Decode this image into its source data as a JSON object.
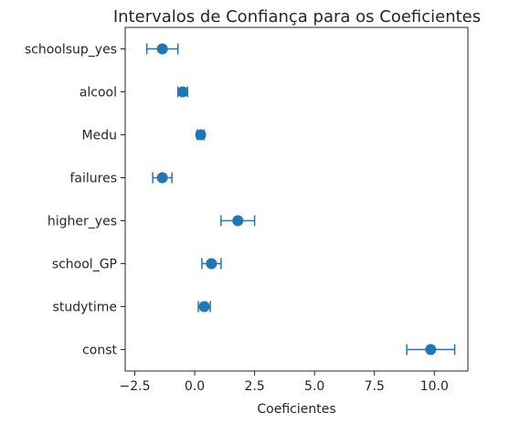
{
  "chart_data": {
    "type": "scatter",
    "title": "Intervalos de Confiança para os Coeficientes",
    "xlabel": "Coeficientes",
    "ylabel": "",
    "xlim": [
      -2.9,
      11.4
    ],
    "xticks": [
      -2.5,
      0.0,
      2.5,
      5.0,
      7.5,
      10.0
    ],
    "xtick_labels": [
      "−2.5",
      "0.0",
      "2.5",
      "5.0",
      "7.5",
      "10.0"
    ],
    "grid": false,
    "legend": "none",
    "color": "#1f77b4",
    "categories": [
      "schoolsup_yes",
      "alcool",
      "Medu",
      "failures",
      "higher_yes",
      "school_GP",
      "studytime",
      "const"
    ],
    "values": [
      -1.35,
      -0.5,
      0.25,
      -1.35,
      1.8,
      0.7,
      0.4,
      9.85
    ],
    "ci_lower": [
      -2.0,
      -0.7,
      0.1,
      -1.75,
      1.1,
      0.3,
      0.15,
      8.85
    ],
    "ci_upper": [
      -0.7,
      -0.3,
      0.4,
      -0.95,
      2.5,
      1.1,
      0.65,
      10.85
    ]
  }
}
